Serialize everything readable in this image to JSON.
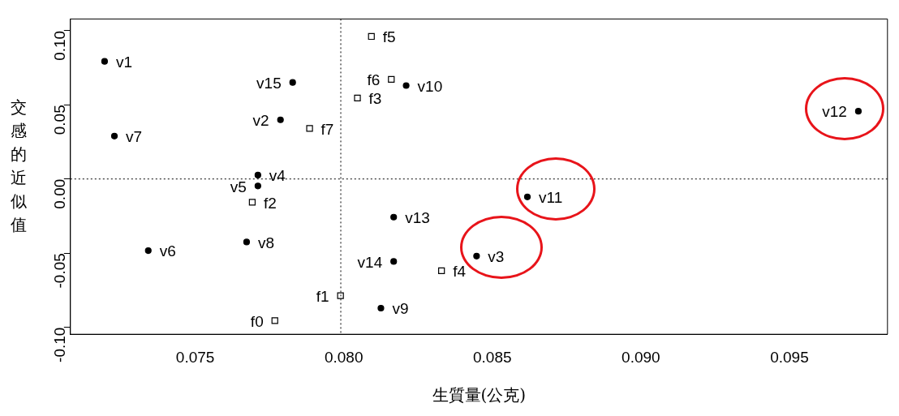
{
  "chart_data": {
    "type": "scatter",
    "xlabel": "生質量(公克)",
    "ylabel": "交感的近似值",
    "xlim": [
      0.0708,
      0.0983
    ],
    "ylim": [
      -0.1047,
      0.1079
    ],
    "xticks": [
      0.075,
      {
        "value": 0.08,
        "label": "0.080"
      },
      0.085,
      {
        "value": 0.09,
        "label": "0.090"
      },
      0.095
    ],
    "yticks": [
      {
        "value": -0.1,
        "label": "-0.10"
      },
      {
        "value": -0.05,
        "label": "-0.05"
      },
      {
        "value": 0,
        "label": "0.00"
      },
      {
        "value": 0.05,
        "label": "0.05"
      },
      {
        "value": 0.1,
        "label": "0.10"
      }
    ],
    "grid": false,
    "legend": false,
    "series": [
      {
        "color": "#000000",
        "marker": "circle",
        "x": [
          0.07195,
          0.07787,
          0.08447,
          0.07711,
          0.07711,
          0.07342,
          0.07228,
          0.07673,
          0.08125,
          0.0821,
          0.08618,
          0.09732,
          0.08168,
          0.08168,
          0.07828
        ],
        "values": [
          0.0793,
          0.0399,
          -0.052,
          0.0026,
          -0.0047,
          -0.0483,
          0.0289,
          -0.0425,
          -0.0871,
          0.063,
          -0.0121,
          0.0457,
          -0.0257,
          -0.0556,
          0.0651
        ]
      },
      {
        "color": "#000000",
        "marker": "square",
        "x": [
          0.07768,
          0.07989,
          0.07692,
          0.08046,
          0.08329,
          0.08093,
          0.0816,
          0.07885
        ],
        "values": [
          -0.0955,
          -0.0787,
          -0.0157,
          0.0546,
          -0.0619,
          0.0961,
          0.0672,
          0.0341
        ]
      }
    ],
    "ref_lines": [
      {
        "axis": "x",
        "value": 0.0799,
        "line_style": "dotted",
        "color": "#000000"
      },
      {
        "axis": "y",
        "value": 0,
        "line_style": "dotted",
        "color": "#000000"
      }
    ],
    "annotations": [
      {
        "text": "v1",
        "x": 0.07195,
        "y": 0.0793
      },
      {
        "text": "v2",
        "x": 0.07787,
        "y": 0.0399
      },
      {
        "text": "v3",
        "x": 0.08447,
        "y": -0.052
      },
      {
        "text": "v4",
        "x": 0.07711,
        "y": 0.0026
      },
      {
        "text": "v5",
        "x": 0.07711,
        "y": -0.0047
      },
      {
        "text": "v6",
        "x": 0.07342,
        "y": -0.0483
      },
      {
        "text": "v7",
        "x": 0.07228,
        "y": 0.0289
      },
      {
        "text": "v8",
        "x": 0.07673,
        "y": -0.0425
      },
      {
        "text": "v9",
        "x": 0.08125,
        "y": -0.0871
      },
      {
        "text": "v10",
        "x": 0.0821,
        "y": 0.063
      },
      {
        "text": "v11",
        "x": 0.08618,
        "y": -0.0121
      },
      {
        "text": "v12",
        "x": 0.09732,
        "y": 0.0457
      },
      {
        "text": "v13",
        "x": 0.08168,
        "y": -0.0257
      },
      {
        "text": "v14",
        "x": 0.08168,
        "y": -0.0556
      },
      {
        "text": "v15",
        "x": 0.07828,
        "y": 0.0651
      },
      {
        "text": "f0",
        "x": 0.07768,
        "y": -0.0955
      },
      {
        "text": "f1",
        "x": 0.07989,
        "y": -0.0787
      },
      {
        "text": "f2",
        "x": 0.07692,
        "y": -0.0157
      },
      {
        "text": "f3",
        "x": 0.08046,
        "y": 0.0546
      },
      {
        "text": "f4",
        "x": 0.08329,
        "y": -0.0619
      },
      {
        "text": "f5",
        "x": 0.08093,
        "y": 0.0961
      },
      {
        "text": "f6",
        "x": 0.0816,
        "y": 0.0672
      },
      {
        "text": "f7",
        "x": 0.07885,
        "y": 0.0341
      }
    ]
  }
}
